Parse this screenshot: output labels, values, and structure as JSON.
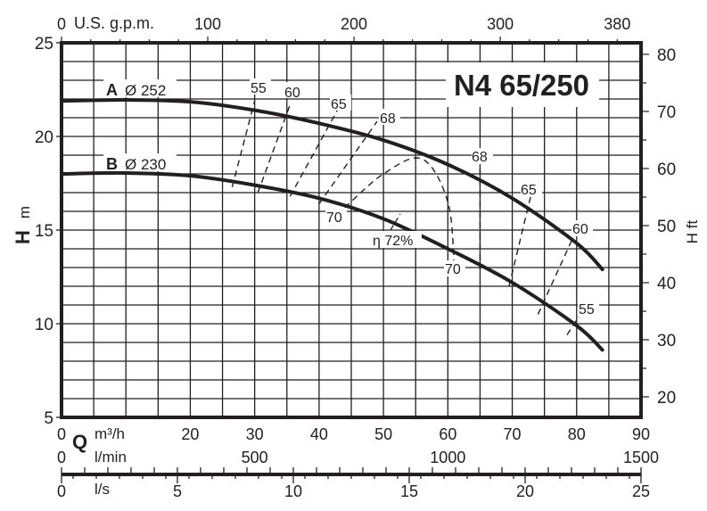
{
  "chart_data": {
    "type": "line",
    "title": "N4 65/250",
    "xlabel": "Q m³/h",
    "ylabel": "H m",
    "ylabel_right": "H ft",
    "xlim": [
      0,
      90
    ],
    "ylim": [
      5,
      25
    ],
    "grid": true,
    "x_ticks": [
      0,
      20,
      30,
      40,
      50,
      60,
      70,
      80,
      90
    ],
    "y_ticks": [
      5,
      10,
      15,
      20,
      25
    ],
    "secondary_axes": {
      "top": {
        "label": "U.S. g.p.m.",
        "ticks": [
          0,
          100,
          200,
          300,
          380
        ]
      },
      "right": {
        "label": "H ft",
        "ticks": [
          20,
          30,
          40,
          50,
          60,
          70,
          80
        ]
      },
      "bottom_lmin": {
        "label": "l/min",
        "ticks": [
          0,
          500,
          1000,
          1500
        ]
      },
      "bottom_ls": {
        "label": "l/s",
        "ticks": [
          0,
          5,
          10,
          15,
          20,
          25
        ]
      }
    },
    "series": [
      {
        "name": "A Ø 252",
        "label": "A",
        "diameter": "Ø 252",
        "x": [
          0,
          10,
          20,
          30,
          40,
          50,
          60,
          70,
          80,
          84
        ],
        "y": [
          21.9,
          21.95,
          21.85,
          21.4,
          20.7,
          19.8,
          18.5,
          16.7,
          14.3,
          12.9
        ]
      },
      {
        "name": "B Ø 230",
        "label": "B",
        "diameter": "Ø 230",
        "x": [
          0,
          10,
          20,
          30,
          40,
          50,
          60,
          70,
          80,
          84
        ],
        "y": [
          18.0,
          18.05,
          17.9,
          17.4,
          16.7,
          15.6,
          14.0,
          12.2,
          9.9,
          8.6
        ]
      }
    ],
    "efficiency_curves": [
      {
        "label": "55",
        "x": [
          26.5,
          30
        ],
        "y": [
          17.3,
          21.9
        ]
      },
      {
        "label": "60",
        "x": [
          30.5,
          35.5
        ],
        "y": [
          17.0,
          21.7
        ]
      },
      {
        "label": "65",
        "x": [
          35.5,
          43
        ],
        "y": [
          16.8,
          21.5
        ]
      },
      {
        "label": "68",
        "x": [
          40,
          49
        ],
        "y": [
          16.4,
          20.8
        ]
      },
      {
        "label": "70",
        "x": [
          44,
          50,
          56,
          60,
          61
        ],
        "y": [
          16.2,
          18.0,
          18.8,
          16.5,
          13.0
        ]
      },
      {
        "label": "68",
        "x": [
          65,
          65
        ],
        "y": [
          18.3,
          12.9
        ]
      },
      {
        "label": "65",
        "x": [
          69.5,
          73
        ],
        "y": [
          12.0,
          17.0
        ]
      },
      {
        "label": "60",
        "x": [
          74,
          80.5
        ],
        "y": [
          10.5,
          15.4
        ]
      },
      {
        "label": "55",
        "x": [
          78.5,
          81.5
        ],
        "y": [
          9.4,
          11.0
        ]
      }
    ],
    "annotations": [
      "A Ø 252",
      "B Ø 230",
      "η 72%",
      "55",
      "60",
      "65",
      "68",
      "70",
      "68",
      "65",
      "60",
      "55",
      "70"
    ]
  },
  "labels": {
    "title": "N4 65/250",
    "top_axis_label": "U.S. g.p.m.",
    "left_axis_letter": "H",
    "left_axis_unit": "m",
    "right_axis_label": "H ft",
    "q_letter": "Q",
    "q_unit_m3h": "m³/h",
    "q_unit_lmin": "l/min",
    "q_unit_ls": "l/s",
    "curve_a_letter": "A",
    "curve_a_diameter": "Ø 252",
    "curve_b_letter": "B",
    "curve_b_diameter": "Ø 230",
    "eta_label": "η 72%",
    "eff_labels": {
      "e55_top": "55",
      "e60_top": "60",
      "e65_top": "65",
      "e68_top": "68",
      "e70_left": "70",
      "e70_bottom": "70",
      "e68_right": "68",
      "e65_right": "65",
      "e60_right": "60",
      "e55_right": "55"
    }
  }
}
